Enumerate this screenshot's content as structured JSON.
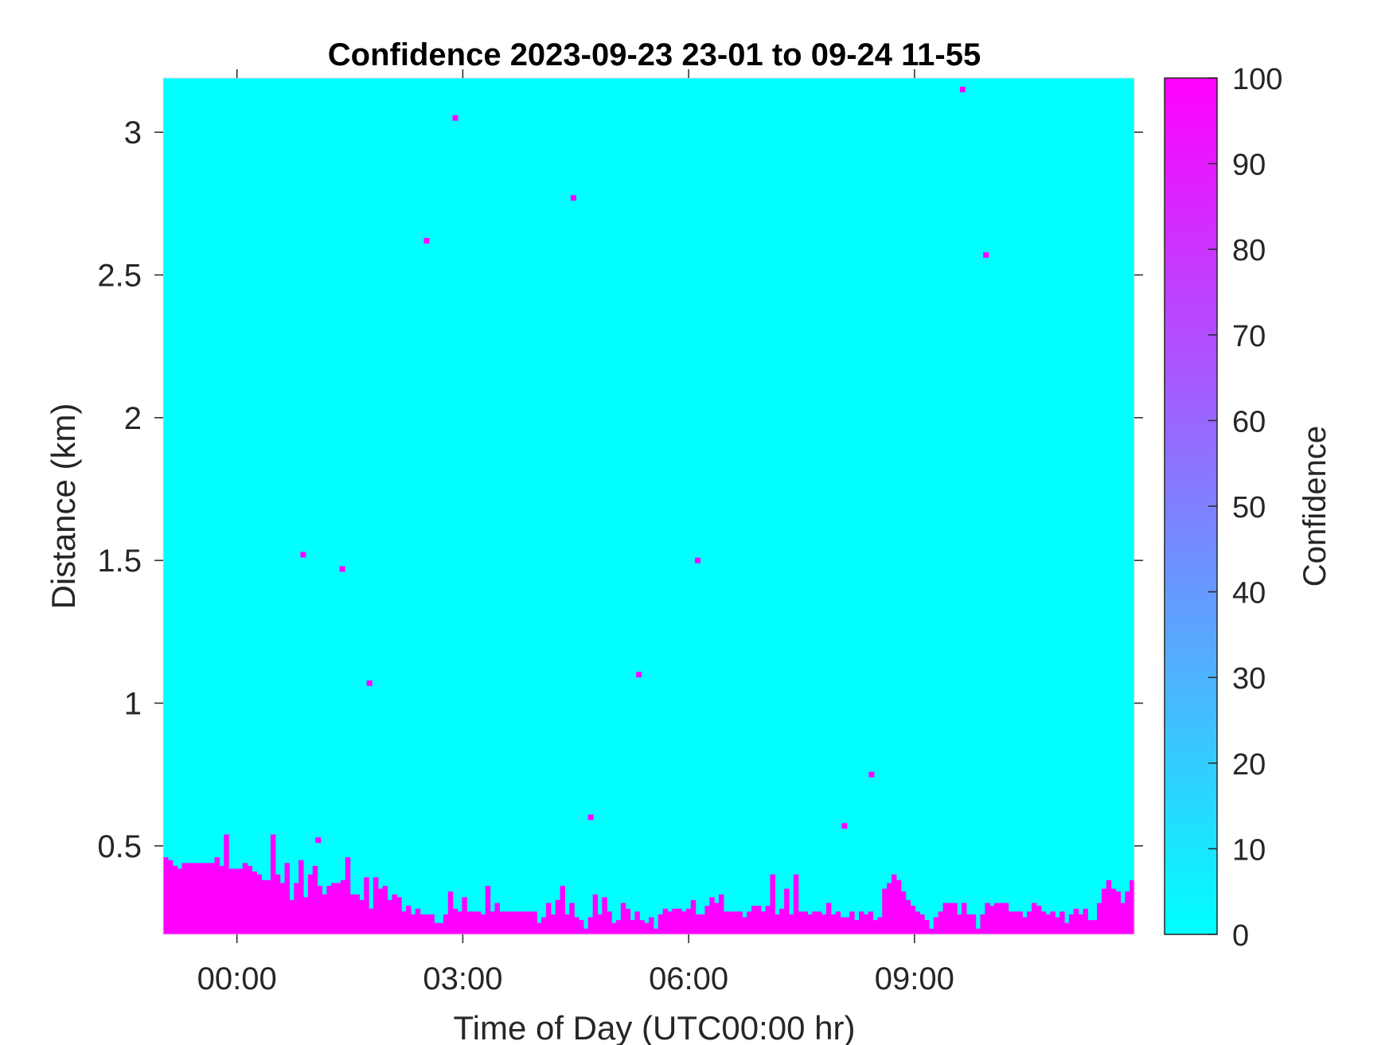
{
  "chart_data": {
    "type": "heatmap",
    "title": "Confidence 2023-09-23 23-01 to 09-24 11-55",
    "xlabel": "Time of Day (UTC00:00 hr)",
    "ylabel": "Distance (km)",
    "xlim_hours": [
      -0.98,
      11.92
    ],
    "ylim": [
      0.19,
      3.19
    ],
    "x_ticks": [
      {
        "value": 0,
        "label": "00:00"
      },
      {
        "value": 3,
        "label": "03:00"
      },
      {
        "value": 6,
        "label": "06:00"
      },
      {
        "value": 9,
        "label": "09:00"
      }
    ],
    "y_ticks": [
      {
        "value": 0.5,
        "label": "0.5"
      },
      {
        "value": 1,
        "label": "1"
      },
      {
        "value": 1.5,
        "label": "1.5"
      },
      {
        "value": 2,
        "label": "2"
      },
      {
        "value": 2.5,
        "label": "2.5"
      },
      {
        "value": 3,
        "label": "3"
      }
    ],
    "colorbar": {
      "label": "Confidence",
      "range": [
        0,
        100
      ],
      "ticks": [
        0,
        10,
        20,
        30,
        40,
        50,
        60,
        70,
        80,
        90,
        100
      ],
      "color_low": "#00ffff",
      "color_high": "#ff00ff"
    },
    "background_value": 0,
    "low_layer_value": 100,
    "low_layer_top_km": [
      0.46,
      0.45,
      0.43,
      0.42,
      0.44,
      0.44,
      0.44,
      0.44,
      0.44,
      0.44,
      0.44,
      0.46,
      0.43,
      0.54,
      0.42,
      0.42,
      0.42,
      0.44,
      0.43,
      0.41,
      0.4,
      0.38,
      0.38,
      0.54,
      0.4,
      0.37,
      0.44,
      0.31,
      0.37,
      0.45,
      0.32,
      0.4,
      0.43,
      0.36,
      0.33,
      0.36,
      0.37,
      0.37,
      0.38,
      0.46,
      0.33,
      0.33,
      0.31,
      0.39,
      0.28,
      0.39,
      0.35,
      0.36,
      0.31,
      0.33,
      0.32,
      0.27,
      0.29,
      0.26,
      0.28,
      0.26,
      0.26,
      0.26,
      0.23,
      0.23,
      0.26,
      0.34,
      0.28,
      0.27,
      0.32,
      0.27,
      0.27,
      0.27,
      0.26,
      0.36,
      0.27,
      0.3,
      0.27,
      0.27,
      0.27,
      0.27,
      0.27,
      0.27,
      0.27,
      0.27,
      0.23,
      0.25,
      0.3,
      0.26,
      0.31,
      0.36,
      0.26,
      0.3,
      0.25,
      0.24,
      0.21,
      0.25,
      0.33,
      0.26,
      0.32,
      0.27,
      0.23,
      0.24,
      0.3,
      0.28,
      0.24,
      0.27,
      0.24,
      0.23,
      0.25,
      0.21,
      0.26,
      0.28,
      0.27,
      0.28,
      0.28,
      0.27,
      0.28,
      0.31,
      0.26,
      0.26,
      0.29,
      0.32,
      0.3,
      0.33,
      0.27,
      0.27,
      0.27,
      0.27,
      0.25,
      0.27,
      0.29,
      0.29,
      0.27,
      0.29,
      0.4,
      0.26,
      0.28,
      0.35,
      0.26,
      0.4,
      0.27,
      0.27,
      0.26,
      0.27,
      0.27,
      0.26,
      0.3,
      0.26,
      0.27,
      0.25,
      0.25,
      0.27,
      0.24,
      0.27,
      0.26,
      0.27,
      0.24,
      0.25,
      0.35,
      0.37,
      0.4,
      0.38,
      0.34,
      0.31,
      0.29,
      0.27,
      0.26,
      0.24,
      0.21,
      0.25,
      0.27,
      0.3,
      0.3,
      0.3,
      0.26,
      0.3,
      0.26,
      0.26,
      0.21,
      0.26,
      0.3,
      0.29,
      0.3,
      0.3,
      0.3,
      0.27,
      0.27,
      0.27,
      0.25,
      0.27,
      0.3,
      0.29,
      0.27,
      0.26,
      0.27,
      0.25,
      0.27,
      0.23,
      0.26,
      0.28,
      0.26,
      0.28,
      0.24,
      0.24,
      0.3,
      0.35,
      0.38,
      0.35,
      0.34,
      0.3,
      0.34,
      0.38
    ],
    "points": [
      {
        "x": 0.88,
        "y": 1.52,
        "value": 100
      },
      {
        "x": 1.08,
        "y": 0.52,
        "value": 100
      },
      {
        "x": 1.4,
        "y": 1.47,
        "value": 100
      },
      {
        "x": 1.76,
        "y": 1.07,
        "value": 100
      },
      {
        "x": 2.52,
        "y": 2.62,
        "value": 100
      },
      {
        "x": 2.9,
        "y": 3.05,
        "value": 100
      },
      {
        "x": 4.47,
        "y": 2.77,
        "value": 100
      },
      {
        "x": 4.7,
        "y": 0.6,
        "value": 100
      },
      {
        "x": 5.34,
        "y": 1.1,
        "value": 100
      },
      {
        "x": 6.12,
        "y": 1.5,
        "value": 100
      },
      {
        "x": 8.07,
        "y": 0.57,
        "value": 100
      },
      {
        "x": 8.43,
        "y": 0.75,
        "value": 100
      },
      {
        "x": 9.64,
        "y": 3.15,
        "value": 100
      },
      {
        "x": 9.95,
        "y": 2.57,
        "value": 100
      }
    ]
  }
}
